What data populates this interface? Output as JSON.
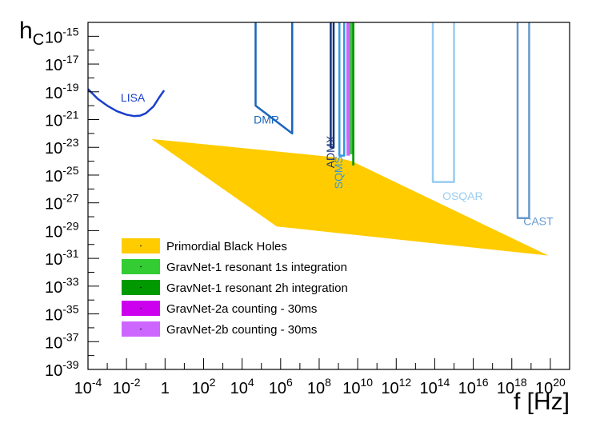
{
  "chart_data": {
    "type": "line",
    "title": "",
    "xlabel": "f [Hz]",
    "ylabel": "h",
    "ylabel_sub": "C",
    "x_scale": "log",
    "y_scale": "log",
    "x_log_range": [
      -4,
      21
    ],
    "y_log_range": [
      -39,
      -14
    ],
    "x_major_ticks": [
      -4,
      -2,
      0,
      2,
      4,
      6,
      8,
      10,
      12,
      14,
      16,
      18,
      20
    ],
    "x_tick_labels": [
      "10^-4",
      "10^-2",
      "1",
      "10^2",
      "10^4",
      "10^6",
      "10^8",
      "10^10",
      "10^12",
      "10^14",
      "10^16",
      "10^18",
      "10^20"
    ],
    "y_major_ticks": [
      -39,
      -37,
      -35,
      -33,
      -31,
      -29,
      -27,
      -25,
      -23,
      -21,
      -19,
      -17,
      -15
    ],
    "grid": false,
    "legend_position": "bottom-left",
    "legend": [
      {
        "label": "Primordial Black Holes",
        "color": "#ffcc00"
      },
      {
        "label": "GravNet-1 resonant 1s integration",
        "color": "#33cc33"
      },
      {
        "label": "GravNet-1 resonant 2h integration",
        "color": "#009900"
      },
      {
        "label": "GravNet-2a counting - 30ms",
        "color": "#cc00ee"
      },
      {
        "label": "GravNet-2b counting - 30ms",
        "color": "#cc66ff"
      }
    ],
    "pbh_region": {
      "color": "#ffcc00",
      "polygon": [
        [
          -0.7,
          -22.4
        ],
        [
          5.8,
          -28.7
        ],
        [
          19.9,
          -30.8
        ],
        [
          9.7,
          -24.0
        ],
        [
          9.1,
          -23.8
        ],
        [
          8.7,
          -23.7
        ]
      ]
    },
    "series": [
      {
        "name": "LISA",
        "color": "#1a3ecc",
        "width": 2.5,
        "label_at": [
          -2.3,
          -19.7
        ],
        "points": [
          [
            -4,
            -18.8
          ],
          [
            -3.5,
            -19.5
          ],
          [
            -3.0,
            -20.0
          ],
          [
            -2.5,
            -20.4
          ],
          [
            -2.0,
            -20.65
          ],
          [
            -1.6,
            -20.75
          ],
          [
            -1.3,
            -20.72
          ],
          [
            -1.0,
            -20.55
          ],
          [
            -0.6,
            -20.05
          ],
          [
            -0.3,
            -19.4
          ],
          [
            -0.05,
            -18.9
          ]
        ]
      },
      {
        "name": "DMR",
        "color": "#1a66bb",
        "width": 2.5,
        "label_at": [
          4.6,
          -21.3
        ],
        "points": [
          [
            4.7,
            -13.8
          ],
          [
            4.7,
            -20.0
          ],
          [
            6.6,
            -22.0
          ],
          [
            6.6,
            -13.8
          ]
        ]
      },
      {
        "name": "ADMX",
        "color": "#14327a",
        "width": 2.5,
        "label_at": [
          8.8,
          -24.5
        ],
        "label_rotated": true,
        "points": [
          [
            8.6,
            -13.8
          ],
          [
            8.6,
            -23.0
          ],
          [
            8.75,
            -23.0
          ],
          [
            8.75,
            -13.8
          ]
        ]
      },
      {
        "name": "SQMS",
        "color": "#3399dd",
        "width": 2.5,
        "label_at": [
          9.2,
          -26.0
        ],
        "label_rotated": true,
        "points": [
          [
            9.05,
            -13.8
          ],
          [
            9.05,
            -23.6
          ],
          [
            9.3,
            -23.6
          ],
          [
            9.3,
            -13.8
          ]
        ]
      },
      {
        "name": "OSQAR",
        "color": "#99ccf0",
        "width": 2.5,
        "label_at": [
          14.4,
          -26.8
        ],
        "points": [
          [
            13.9,
            -13.8
          ],
          [
            13.9,
            -25.5
          ],
          [
            15.0,
            -25.5
          ],
          [
            15.0,
            -13.8
          ]
        ]
      },
      {
        "name": "CAST",
        "color": "#6699cc",
        "width": 2.5,
        "label_at": [
          18.6,
          -28.6
        ],
        "points": [
          [
            18.3,
            -13.8
          ],
          [
            18.3,
            -28.1
          ],
          [
            18.9,
            -28.1
          ],
          [
            18.9,
            -13.8
          ]
        ]
      }
    ],
    "gravnet_bands": [
      {
        "label": "GravNet-1 resonant 1s integration",
        "color": "#33cc33",
        "x_range": [
          9.55,
          9.78
        ],
        "y_range": [
          -23.5,
          -13.8
        ]
      },
      {
        "label": "GravNet-1 resonant 2h integration",
        "color": "#009900",
        "x_range": [
          9.72,
          9.82
        ],
        "y_range": [
          -24.3,
          -13.8
        ]
      },
      {
        "label": "GravNet-2a counting - 30ms",
        "color": "#cc00ee",
        "x_range": [
          9.42,
          9.6
        ],
        "y_range": [
          -22.5,
          -13.8
        ]
      },
      {
        "label": "GravNet-2b counting - 30ms",
        "color": "#cc66ff",
        "x_range": [
          9.42,
          9.6
        ],
        "y_range": [
          -23.6,
          -13.8
        ]
      }
    ]
  }
}
